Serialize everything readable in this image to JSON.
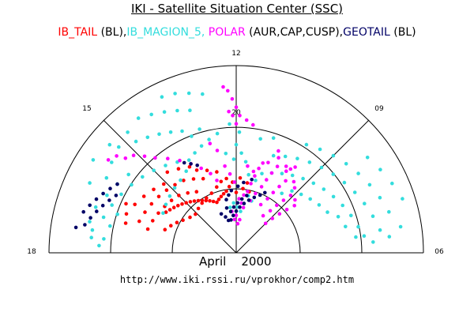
{
  "header": {
    "title": "IKI - Satellite Situation Center (SSC)"
  },
  "legend": [
    {
      "text": "IB_TAIL",
      "color": "#ff0000"
    },
    {
      "text": " (BL),",
      "color": "#000000"
    },
    {
      "text": "IB_MAGION_5,",
      "color": "#33dddd"
    },
    {
      "text": " POLAR",
      "color": "#ff00ff"
    },
    {
      "text": " (AUR,CAP,CUSP),",
      "color": "#000000"
    },
    {
      "text": "GEOTAIL",
      "color": "#000066"
    },
    {
      "text": " (BL)",
      "color": "#000000"
    }
  ],
  "footer": {
    "date": "April    2000",
    "url": "http://www.iki.rssi.ru/vprokhor/comp2.htm"
  },
  "chart_data": {
    "type": "scatter",
    "coordinate_system": "polar (MLT / invariant latitude)",
    "theta_ticks": [
      "06",
      "09",
      "12",
      "15",
      "18"
    ],
    "radial_ticks": [
      "20"
    ],
    "series": [
      {
        "name": "IB_TAIL",
        "color": "#ff0000",
        "points": [
          [
            12.4,
            32
          ],
          [
            12.6,
            30
          ],
          [
            12.8,
            29
          ],
          [
            13.0,
            28
          ],
          [
            13.2,
            27
          ],
          [
            13.4,
            26
          ],
          [
            13.6,
            27
          ],
          [
            13.8,
            28
          ],
          [
            14.0,
            29
          ],
          [
            14.2,
            30
          ],
          [
            14.4,
            31
          ],
          [
            14.6,
            32
          ],
          [
            14.8,
            33
          ],
          [
            15.0,
            34
          ],
          [
            15.2,
            35
          ],
          [
            15.4,
            36
          ],
          [
            15.6,
            37
          ],
          [
            15.8,
            38
          ],
          [
            16.0,
            39
          ],
          [
            12.2,
            34
          ],
          [
            12.5,
            36
          ],
          [
            12.8,
            35
          ],
          [
            13.1,
            33
          ],
          [
            13.5,
            31
          ],
          [
            13.9,
            30
          ],
          [
            14.3,
            29
          ],
          [
            14.7,
            28
          ],
          [
            15.1,
            27
          ],
          [
            15.5,
            28
          ],
          [
            15.9,
            30
          ],
          [
            16.2,
            32
          ],
          [
            16.5,
            34
          ],
          [
            16.8,
            36
          ],
          [
            14.2,
            35
          ],
          [
            14.6,
            37
          ],
          [
            15.0,
            39
          ],
          [
            15.4,
            40
          ],
          [
            15.8,
            41
          ],
          [
            16.2,
            42
          ],
          [
            16.6,
            43
          ],
          [
            17.0,
            44
          ],
          [
            13.6,
            39
          ],
          [
            14.0,
            41
          ],
          [
            14.4,
            43
          ],
          [
            14.8,
            44
          ],
          [
            15.2,
            45
          ],
          [
            15.6,
            46
          ],
          [
            16.0,
            47
          ],
          [
            16.4,
            48
          ],
          [
            16.8,
            49
          ],
          [
            12.9,
            40
          ],
          [
            13.3,
            42
          ],
          [
            13.7,
            44
          ],
          [
            11.2,
            30
          ],
          [
            11.6,
            31
          ],
          [
            12.0,
            29
          ],
          [
            11.4,
            34
          ],
          [
            11.8,
            36
          ],
          [
            15.1,
            48
          ],
          [
            15.5,
            50
          ],
          [
            15.9,
            52
          ],
          [
            16.3,
            54
          ],
          [
            16.7,
            56
          ],
          [
            17.0,
            55
          ],
          [
            16.4,
            58
          ],
          [
            13.9,
            47
          ],
          [
            14.3,
            49
          ],
          [
            14.7,
            51
          ]
        ]
      },
      {
        "name": "IB_MAGION_5",
        "color": "#33dddd",
        "points": [
          [
            14.8,
            78
          ],
          [
            15.2,
            76
          ],
          [
            15.6,
            74
          ],
          [
            16.0,
            72
          ],
          [
            16.4,
            70
          ],
          [
            16.8,
            71
          ],
          [
            17.2,
            72
          ],
          [
            17.4,
            70
          ],
          [
            17.0,
            66
          ],
          [
            16.6,
            64
          ],
          [
            16.2,
            62
          ],
          [
            15.8,
            60
          ],
          [
            15.4,
            58
          ],
          [
            15.0,
            56
          ],
          [
            14.6,
            54
          ],
          [
            14.2,
            52
          ],
          [
            13.8,
            50
          ],
          [
            14.1,
            46
          ],
          [
            14.5,
            44
          ],
          [
            14.9,
            43
          ],
          [
            15.3,
            42
          ],
          [
            15.7,
            41
          ],
          [
            16.1,
            40
          ],
          [
            13.6,
            64
          ],
          [
            13.9,
            66
          ],
          [
            14.2,
            68
          ],
          [
            14.5,
            70
          ],
          [
            14.8,
            72
          ],
          [
            13.2,
            72
          ],
          [
            13.5,
            74
          ],
          [
            13.8,
            76
          ],
          [
            14.1,
            78
          ],
          [
            14.4,
            80
          ],
          [
            12.8,
            78
          ],
          [
            13.1,
            80
          ],
          [
            13.4,
            82
          ],
          [
            13.7,
            83
          ],
          [
            12.6,
            58
          ],
          [
            12.9,
            56
          ],
          [
            13.2,
            54
          ],
          [
            13.5,
            52
          ],
          [
            13.1,
            62
          ],
          [
            13.4,
            60
          ],
          [
            15.6,
            64
          ],
          [
            16.0,
            66
          ],
          [
            16.4,
            68
          ],
          [
            16.8,
            60
          ],
          [
            17.2,
            62
          ],
          [
            17.6,
            64
          ],
          [
            17.8,
            66
          ],
          [
            17.6,
            70
          ],
          [
            15.3,
            80
          ],
          [
            15.8,
            82
          ],
          [
            16.3,
            78
          ],
          [
            10.8,
            40
          ],
          [
            10.4,
            42
          ],
          [
            10.0,
            44
          ],
          [
            9.6,
            46
          ],
          [
            9.2,
            48
          ],
          [
            8.8,
            50
          ],
          [
            8.4,
            52
          ],
          [
            8.0,
            54
          ],
          [
            7.6,
            56
          ],
          [
            7.2,
            58
          ],
          [
            6.8,
            60
          ],
          [
            6.5,
            62
          ],
          [
            10.6,
            50
          ],
          [
            10.2,
            52
          ],
          [
            9.8,
            54
          ],
          [
            9.4,
            56
          ],
          [
            9.0,
            58
          ],
          [
            8.6,
            60
          ],
          [
            8.2,
            62
          ],
          [
            7.8,
            64
          ],
          [
            7.4,
            66
          ],
          [
            7.0,
            68
          ],
          [
            6.6,
            70
          ],
          [
            9.8,
            62
          ],
          [
            9.4,
            64
          ],
          [
            9.0,
            66
          ],
          [
            8.6,
            68
          ],
          [
            8.2,
            70
          ],
          [
            7.8,
            72
          ],
          [
            7.4,
            74
          ],
          [
            7.0,
            76
          ],
          [
            8.4,
            78
          ],
          [
            8.0,
            80
          ],
          [
            7.6,
            82
          ],
          [
            7.2,
            84
          ],
          [
            6.6,
            80
          ],
          [
            6.4,
            74
          ],
          [
            11.0,
            36
          ],
          [
            11.4,
            38
          ],
          [
            11.6,
            44
          ],
          [
            11.8,
            48
          ],
          [
            12.0,
            52
          ],
          [
            11.2,
            56
          ],
          [
            10.8,
            58
          ],
          [
            11.6,
            20
          ],
          [
            11.9,
            22
          ],
          [
            12.2,
            24
          ],
          [
            12.5,
            22
          ],
          [
            12.1,
            45
          ],
          [
            12.4,
            48
          ],
          [
            11.9,
            58
          ],
          [
            12.2,
            62
          ],
          [
            10.9,
            26
          ],
          [
            11.2,
            28
          ],
          [
            9.5,
            36
          ],
          [
            9.2,
            40
          ],
          [
            8.8,
            42
          ],
          [
            8.4,
            44
          ],
          [
            8.0,
            46
          ],
          [
            7.6,
            48
          ],
          [
            7.3,
            52
          ],
          [
            6.9,
            54
          ],
          [
            6.5,
            58
          ],
          [
            6.3,
            66
          ]
        ]
      },
      {
        "name": "POLAR",
        "color": "#ff00ff",
        "points": [
          [
            11.0,
            26
          ],
          [
            10.8,
            30
          ],
          [
            10.6,
            34
          ],
          [
            10.5,
            38
          ],
          [
            10.4,
            42
          ],
          [
            10.3,
            46
          ],
          [
            10.4,
            50
          ],
          [
            10.5,
            53
          ],
          [
            10.2,
            26
          ],
          [
            10.0,
            30
          ],
          [
            9.9,
            34
          ],
          [
            9.8,
            38
          ],
          [
            9.7,
            42
          ],
          [
            9.9,
            46
          ],
          [
            10.0,
            48
          ],
          [
            9.6,
            22
          ],
          [
            9.4,
            26
          ],
          [
            9.3,
            30
          ],
          [
            9.2,
            34
          ],
          [
            9.1,
            38
          ],
          [
            9.2,
            42
          ],
          [
            9.4,
            44
          ],
          [
            9.0,
            20
          ],
          [
            8.9,
            24
          ],
          [
            8.8,
            28
          ],
          [
            8.7,
            32
          ],
          [
            8.6,
            36
          ],
          [
            8.8,
            38
          ],
          [
            11.3,
            30
          ],
          [
            11.2,
            34
          ],
          [
            11.1,
            38
          ],
          [
            11.4,
            22
          ],
          [
            11.6,
            24
          ],
          [
            11.8,
            26
          ],
          [
            11.5,
            28
          ],
          [
            10.7,
            46
          ],
          [
            10.9,
            45
          ],
          [
            11.0,
            42
          ],
          [
            11.2,
            40
          ],
          [
            11.5,
            42
          ],
          [
            12.1,
            34
          ],
          [
            12.3,
            38
          ],
          [
            12.5,
            42
          ],
          [
            13.0,
            36
          ],
          [
            13.2,
            40
          ],
          [
            12.7,
            50
          ],
          [
            12.9,
            54
          ],
          [
            12.2,
            16
          ],
          [
            12.4,
            20
          ],
          [
            12.0,
            18
          ],
          [
            11.8,
            14
          ],
          [
            11.6,
            16
          ],
          [
            13.5,
            44
          ],
          [
            13.8,
            48
          ],
          [
            14.1,
            52
          ],
          [
            14.4,
            56
          ],
          [
            14.7,
            60
          ],
          [
            14.9,
            64
          ],
          [
            15.1,
            68
          ],
          [
            15.3,
            70
          ],
          [
            15.4,
            74
          ],
          [
            15.6,
            76
          ],
          [
            12.0,
            62
          ],
          [
            12.1,
            66
          ],
          [
            12.2,
            68
          ],
          [
            11.5,
            62
          ],
          [
            11.7,
            64
          ],
          [
            11.9,
            66
          ],
          [
            12.0,
            70
          ],
          [
            12.1,
            74
          ],
          [
            12.2,
            78
          ],
          [
            12.3,
            80
          ],
          [
            9.7,
            50
          ],
          [
            9.8,
            48
          ]
        ]
      },
      {
        "name": "GEOTAIL",
        "color": "#000066",
        "points": [
          [
            12.6,
            16
          ],
          [
            12.3,
            18
          ],
          [
            12.0,
            20
          ],
          [
            11.7,
            22
          ],
          [
            11.4,
            24
          ],
          [
            11.1,
            26
          ],
          [
            10.8,
            28
          ],
          [
            10.5,
            30
          ],
          [
            10.3,
            32
          ],
          [
            12.5,
            20
          ],
          [
            12.2,
            22
          ],
          [
            11.9,
            24
          ],
          [
            11.6,
            26
          ],
          [
            11.3,
            28
          ],
          [
            12.9,
            16
          ],
          [
            13.1,
            18
          ],
          [
            13.4,
            20
          ],
          [
            12.8,
            22
          ],
          [
            12.7,
            26
          ],
          [
            12.5,
            28
          ],
          [
            12.3,
            30
          ],
          [
            11.9,
            32
          ],
          [
            11.6,
            34
          ],
          [
            11.2,
            36
          ],
          [
            16.0,
            66
          ],
          [
            16.2,
            68
          ],
          [
            16.4,
            70
          ],
          [
            16.6,
            72
          ],
          [
            16.8,
            74
          ],
          [
            17.0,
            76
          ],
          [
            16.3,
            64
          ],
          [
            16.5,
            66
          ],
          [
            16.7,
            68
          ],
          [
            16.9,
            70
          ],
          [
            17.1,
            72
          ],
          [
            17.3,
            74
          ],
          [
            17.4,
            78
          ],
          [
            13.6,
            46
          ],
          [
            13.8,
            48
          ],
          [
            14.0,
            50
          ]
        ]
      }
    ]
  }
}
